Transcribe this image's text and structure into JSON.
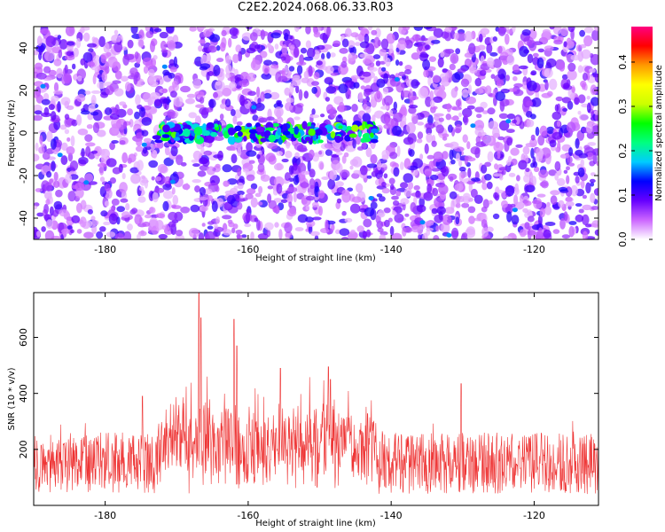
{
  "figure_title": "C2E2.2024.068.06.33.R03",
  "chart_data": [
    {
      "type": "heatmap",
      "description_axes": true,
      "xlabel": "Height of straight line (km)",
      "ylabel": "Frequency (Hz)",
      "xlim": [
        -190,
        -111
      ],
      "ylim": [
        -50,
        50
      ],
      "xticks": [
        -180,
        -160,
        -140,
        -120
      ],
      "yticks": [
        -40,
        -20,
        0,
        20,
        40
      ],
      "colorbar": {
        "label": "Normalized spectral amplitude",
        "range": [
          0.0,
          0.48
        ],
        "ticks": [
          0.0,
          0.1,
          0.2,
          0.3,
          0.4
        ],
        "colormap": [
          "#ffffff",
          "#cc66ff",
          "#6600ff",
          "#0000ff",
          "#00ccff",
          "#00ff80",
          "#00ff00",
          "#ccff00",
          "#ffff00",
          "#ff9900",
          "#ff0000",
          "#ff0080"
        ]
      },
      "features": [
        {
          "label": "strong band",
          "x_range": [
            -173,
            -142
          ],
          "freq_center": 0,
          "freq_halfwidth": 4,
          "peak_amplitude": 0.3
        }
      ]
    },
    {
      "type": "line",
      "xlabel": "Height of straight line (km)",
      "ylabel": "SNR (10 * v/v)",
      "xlim": [
        -190,
        -111
      ],
      "ylim": [
        0,
        760
      ],
      "xticks": [
        -180,
        -160,
        -140,
        -120
      ],
      "yticks": [
        200,
        400,
        600
      ],
      "color": "#ee3333",
      "baseline_range": [
        40,
        260
      ],
      "peaks": [
        {
          "x": -166.9,
          "y": 760
        },
        {
          "x": -166.6,
          "y": 670
        },
        {
          "x": -162.0,
          "y": 665
        },
        {
          "x": -161.6,
          "y": 570
        },
        {
          "x": -155.5,
          "y": 490
        },
        {
          "x": -148.8,
          "y": 495
        },
        {
          "x": -148.5,
          "y": 450
        },
        {
          "x": -130.2,
          "y": 435
        },
        {
          "x": -174.8,
          "y": 390
        }
      ]
    }
  ]
}
